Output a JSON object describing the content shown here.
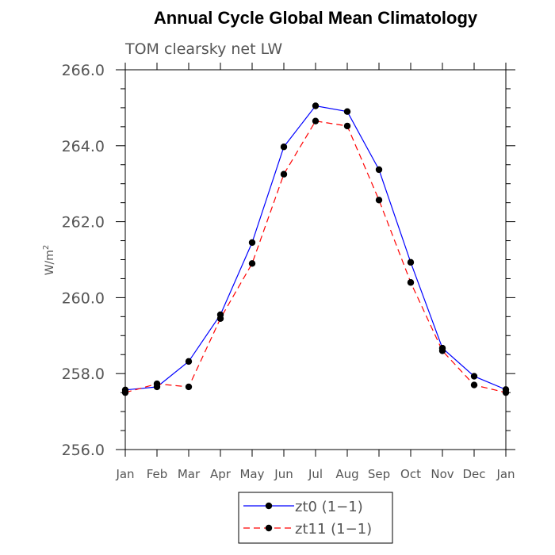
{
  "chart_data": {
    "type": "line",
    "title": "Annual Cycle Global Mean Climatology",
    "subtitle": "TOM clearsky net LW",
    "ylabel": "W/m",
    "ylabel_sup": "2",
    "categories": [
      "Jan",
      "Feb",
      "Mar",
      "Apr",
      "May",
      "Jun",
      "Jul",
      "Aug",
      "Sep",
      "Oct",
      "Nov",
      "Dec",
      "Jan"
    ],
    "yticks": [
      "256.0",
      "258.0",
      "260.0",
      "262.0",
      "264.0",
      "266.0"
    ],
    "ylim": [
      256,
      266
    ],
    "series": [
      {
        "name": "zt0 (1−1)",
        "color": "#0000ff",
        "dash": "solid",
        "values": [
          257.57,
          257.65,
          258.32,
          259.55,
          261.45,
          263.97,
          265.05,
          264.9,
          263.37,
          260.93,
          258.67,
          257.93,
          257.58
        ]
      },
      {
        "name": "zt11 (1−1)",
        "color": "#ff0000",
        "dash": "dashed",
        "values": [
          257.5,
          257.73,
          257.65,
          259.45,
          260.9,
          263.25,
          264.65,
          264.52,
          262.57,
          260.4,
          258.6,
          257.7,
          257.5
        ]
      }
    ],
    "grid": false,
    "legend_position": "bottom-center"
  }
}
